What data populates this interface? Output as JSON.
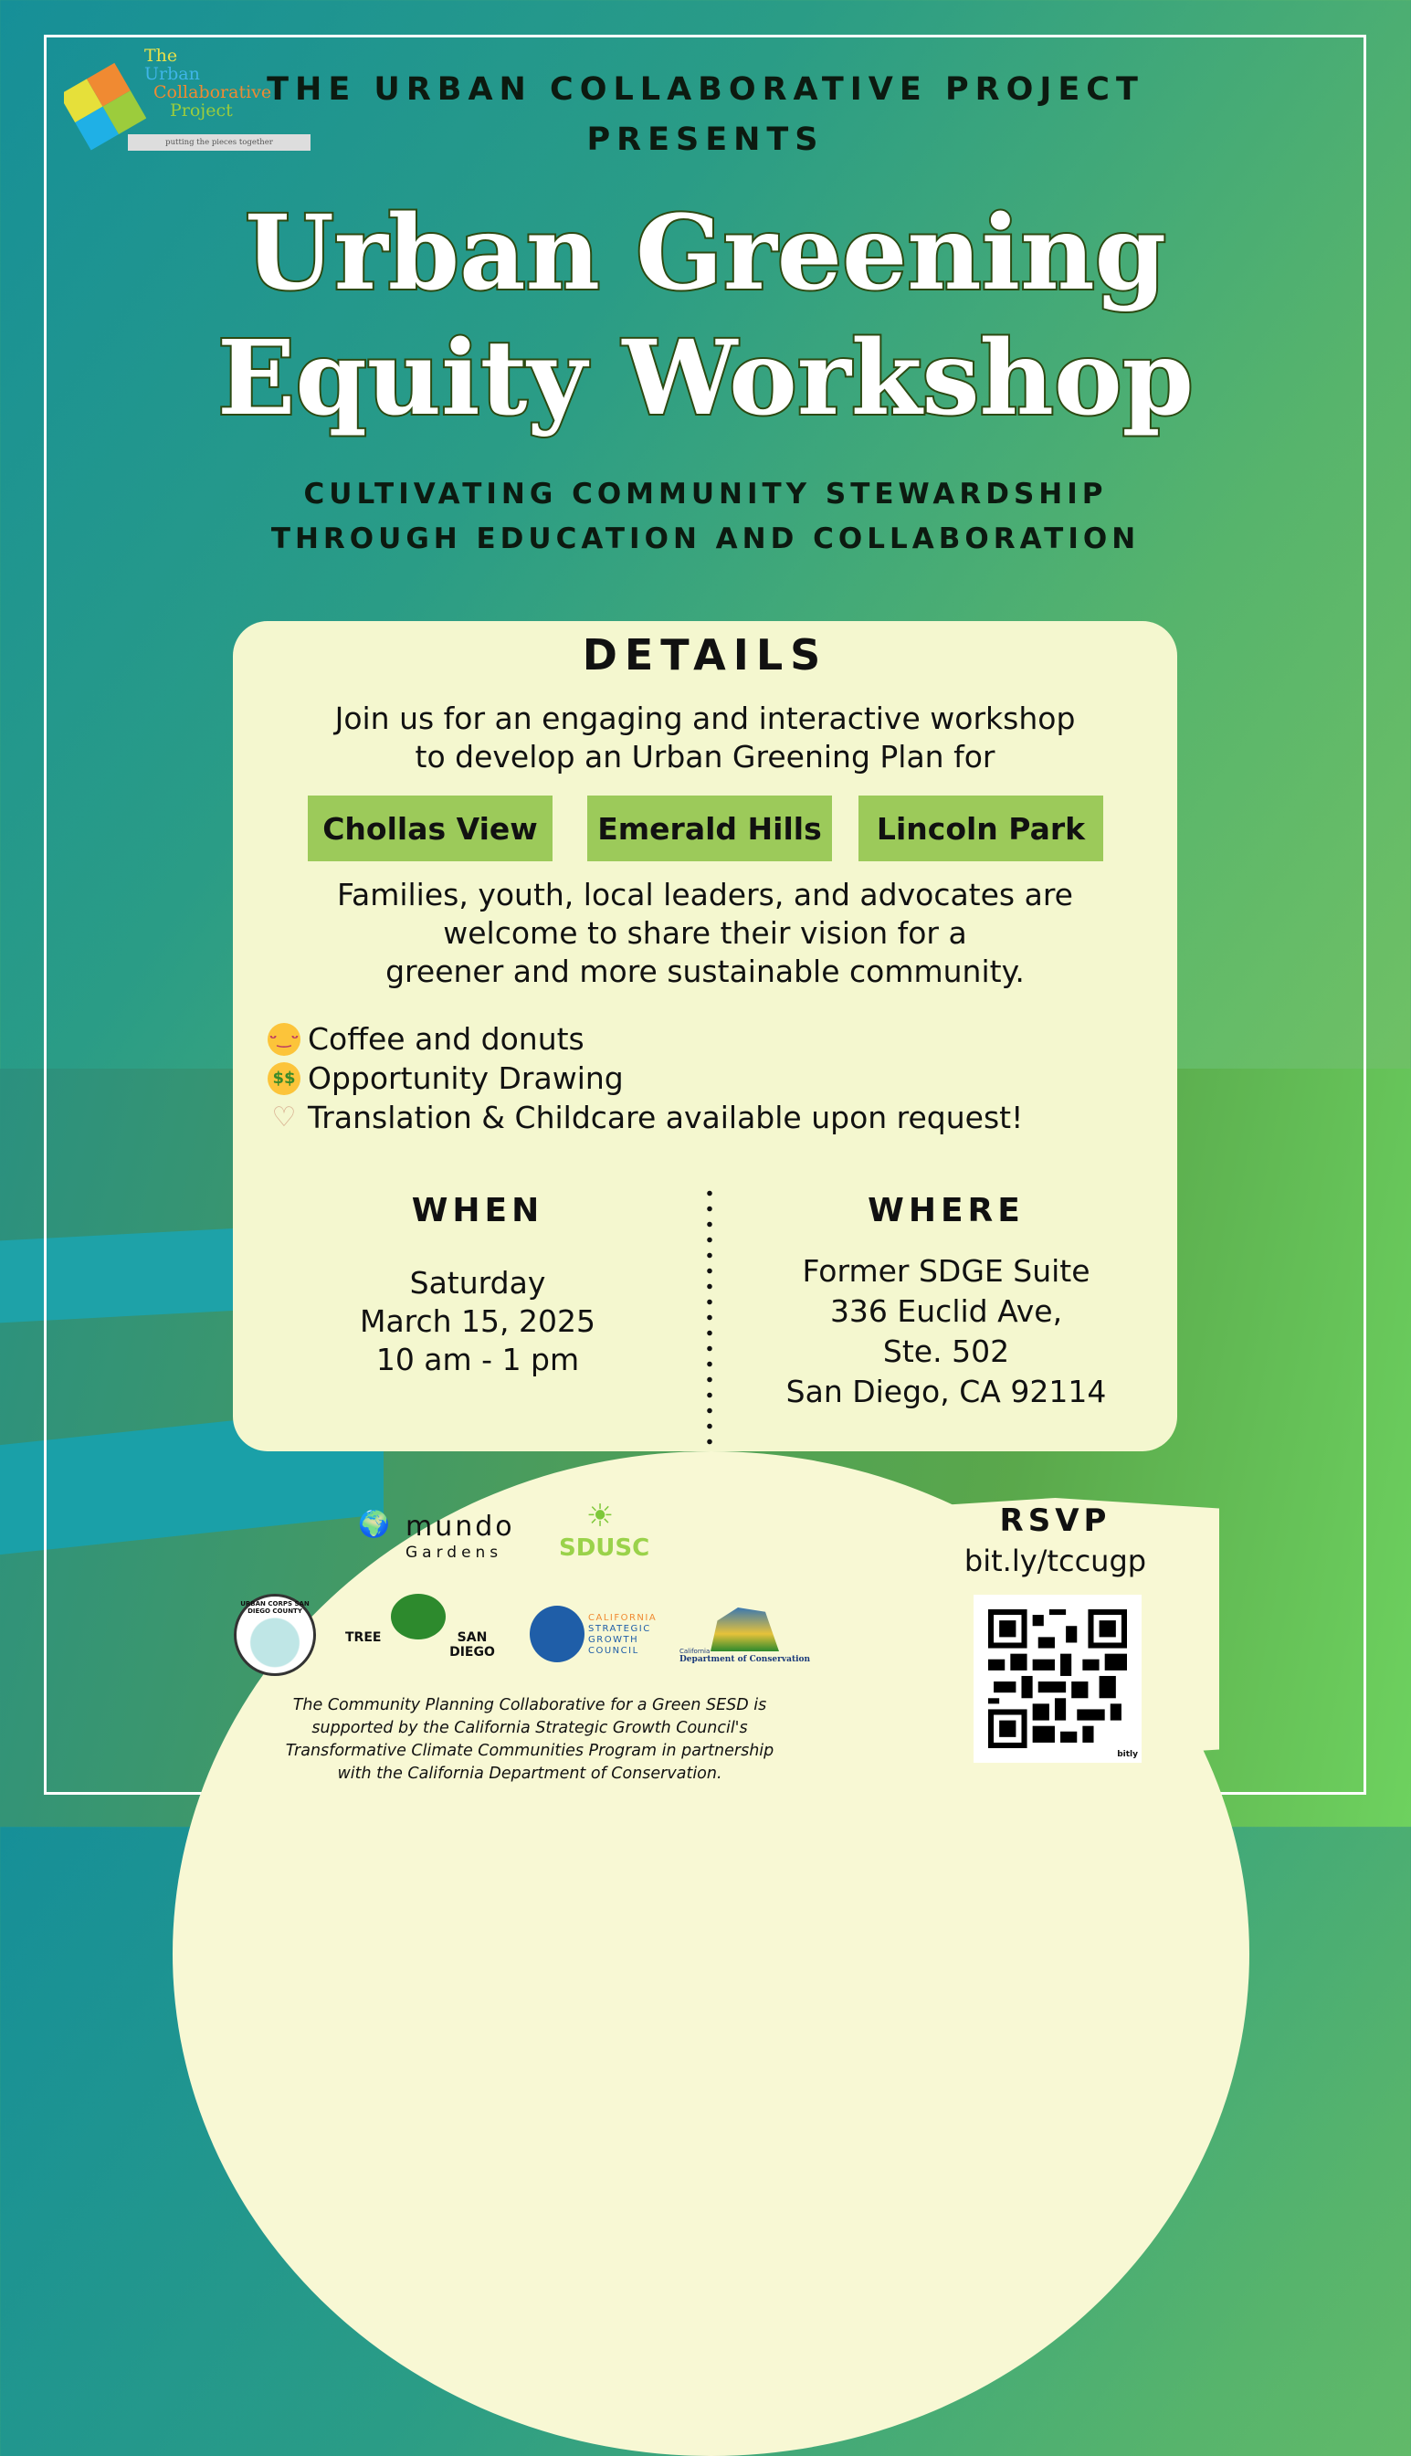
{
  "logo": {
    "line1": "The",
    "line2": "Urban",
    "line3": "Collaborative",
    "line4": "Project",
    "tagline": "putting the pieces together"
  },
  "header": {
    "line1": "THE URBAN COLLABORATIVE PROJECT",
    "line2": "PRESENTS"
  },
  "title": {
    "line1": "Urban Greening",
    "line2": "Equity Workshop"
  },
  "subtitle": {
    "line1": "CULTIVATING COMMUNITY STEWARDSHIP",
    "line2": "THROUGH EDUCATION AND COLLABORATION"
  },
  "details": {
    "heading": "DETAILS",
    "intro": [
      "Join us for an engaging and interactive workshop",
      "to develop an Urban Greening Plan for"
    ],
    "neighborhoods": [
      "Chollas View",
      "Emerald Hills",
      "Lincoln Park"
    ],
    "welcome": [
      "Families, youth, local leaders, and advocates are",
      "welcome to share their vision for a",
      "greener and more sustainable community."
    ],
    "perks": [
      {
        "icon": "yum-face-icon",
        "text": "Coffee and donuts"
      },
      {
        "icon": "money-face-icon",
        "text": "Opportunity Drawing"
      },
      {
        "icon": "heart-hands-icon",
        "text": "Translation & Childcare available upon request!"
      }
    ],
    "when": {
      "heading": "WHEN",
      "lines": [
        "Saturday",
        "March 15, 2025",
        "10 am - 1 pm"
      ]
    },
    "where": {
      "heading": "WHERE",
      "lines": [
        "Former SDGE Suite",
        "336 Euclid Ave,",
        "Ste. 502",
        "San Diego, CA 92114"
      ]
    }
  },
  "partners": {
    "mundo": [
      "mundo",
      "Gardens"
    ],
    "sdusc": "SDUSC",
    "urbancorps": "URBAN CORPS SAN DIEGO COUNTY",
    "tree": [
      "TREE",
      "SAN DIEGO"
    ],
    "sgc": [
      "CALIFORNIA",
      "STRATEGIC",
      "GROWTH",
      "COUNCIL"
    ],
    "doc": [
      "California",
      "Department of Conservation"
    ]
  },
  "footer": [
    "The Community Planning Collaborative for a Green SESD is",
    "supported by the California Strategic Growth Council's",
    "Transformative Climate Communities Program in partnership",
    "with the California Department of Conservation."
  ],
  "rsvp": {
    "heading": "RSVP",
    "link": "bit.ly/tccugp",
    "qr_brand": "bitly"
  },
  "colors": {
    "card": "#f4f7cf",
    "chip": "#9cca5a",
    "title_outline": "#2c4a12"
  }
}
